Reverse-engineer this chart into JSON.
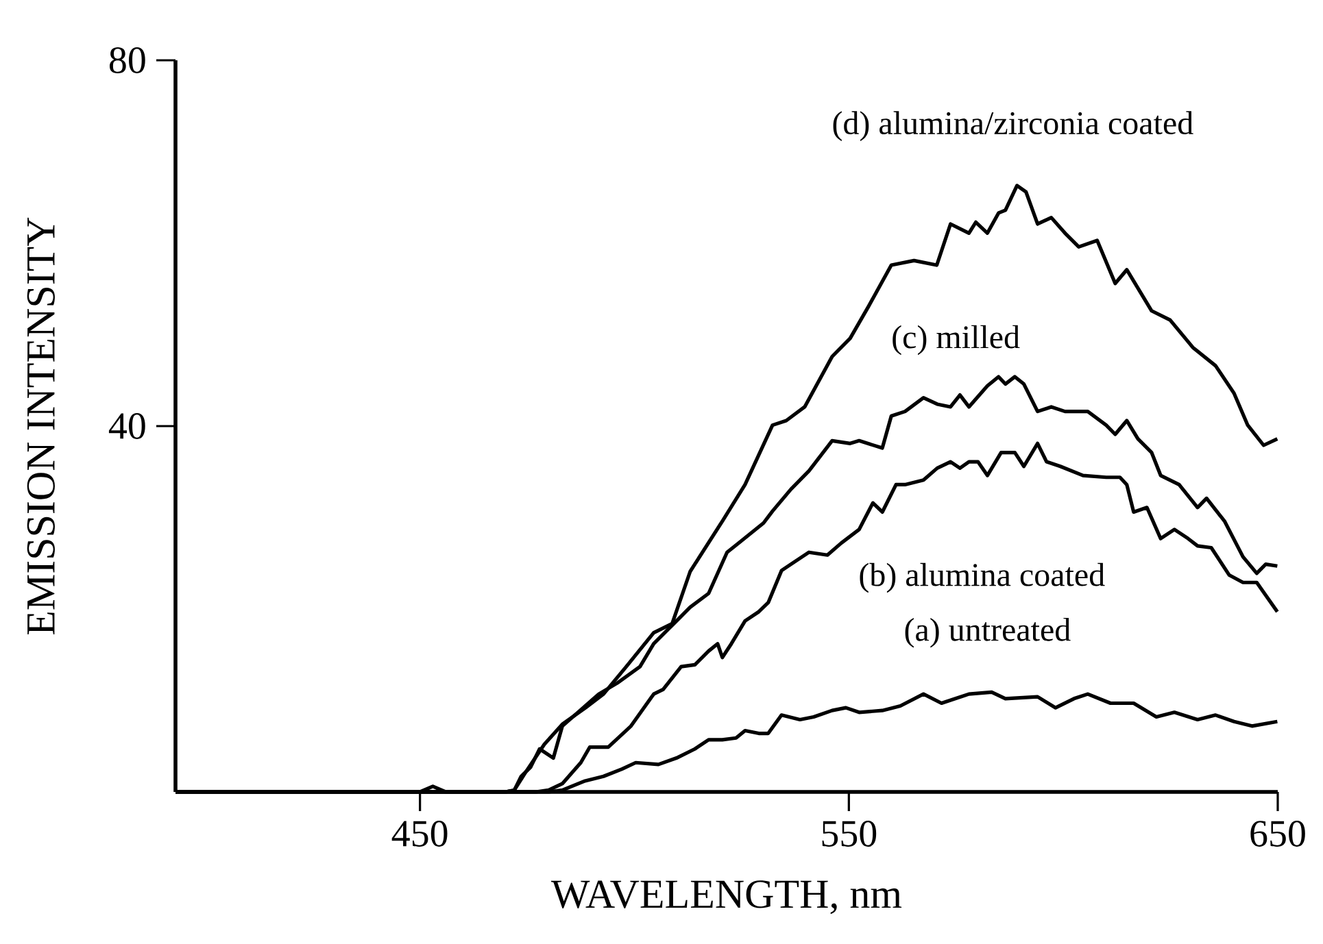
{
  "chart_data": {
    "type": "line",
    "xlabel": "WAVELENGTH, nm",
    "ylabel": "EMISSION INTENSITY",
    "xlim": [
      393,
      650
    ],
    "ylim": [
      0,
      80
    ],
    "xticks": [
      450,
      550,
      650
    ],
    "yticks": [
      40,
      80
    ],
    "series": [
      {
        "name": "(a) untreated",
        "color": "#000000",
        "x": [
          393,
          480,
          483.2,
          488.5,
          492.8,
          497.1,
          500.3,
          505.6,
          509.8,
          514.1,
          517.3,
          520.5,
          523.7,
          525.8,
          529.0,
          531.2,
          534.3,
          538.6,
          541.8,
          546.1,
          549.3,
          552.4,
          557.8,
          562.0,
          567.4,
          571.6,
          578.0,
          583.3,
          586.5,
          594.0,
          598.2,
          602.5,
          605.7,
          611.0,
          616.4,
          621.7,
          625.9,
          631.3,
          635.5,
          639.8,
          644.0,
          649.9
        ],
        "values": [
          0,
          0,
          0.2,
          1.2,
          1.7,
          2.5,
          3.2,
          3.0,
          3.7,
          4.7,
          5.7,
          5.7,
          5.9,
          6.7,
          6.4,
          6.4,
          8.4,
          7.9,
          8.2,
          8.9,
          9.2,
          8.7,
          8.9,
          9.4,
          10.7,
          9.7,
          10.7,
          10.9,
          10.2,
          10.4,
          9.2,
          10.2,
          10.7,
          9.7,
          9.7,
          8.2,
          8.7,
          7.9,
          8.4,
          7.7,
          7.2,
          7.7
        ]
      },
      {
        "name": "(b) alumina coated",
        "color": "#000000",
        "x": [
          393,
          477,
          480.0,
          483.2,
          487.5,
          489.6,
          493.9,
          499.2,
          504.5,
          506.7,
          510.9,
          514.1,
          517.3,
          519.4,
          520.5,
          522.6,
          525.8,
          529.0,
          531.2,
          534.3,
          536.5,
          540.7,
          545.0,
          548.2,
          552.4,
          555.6,
          557.8,
          561.0,
          563.1,
          567.4,
          570.6,
          573.7,
          575.9,
          578.0,
          580.1,
          582.3,
          585.5,
          588.7,
          590.8,
          594.0,
          596.1,
          599.3,
          604.6,
          610.0,
          613.2,
          614.8,
          616.4,
          619.5,
          622.7,
          625.9,
          629.1,
          631.3,
          634.5,
          638.7,
          641.9,
          645.1,
          649.9
        ],
        "values": [
          0,
          0,
          0.2,
          0.9,
          3.2,
          4.9,
          4.9,
          7.2,
          10.7,
          11.2,
          13.7,
          13.9,
          15.4,
          16.2,
          14.7,
          16.2,
          18.7,
          19.7,
          20.7,
          24.2,
          24.9,
          26.2,
          25.9,
          27.2,
          28.7,
          31.6,
          30.6,
          33.6,
          33.6,
          34.1,
          35.4,
          36.1,
          35.4,
          36.1,
          36.1,
          34.6,
          37.1,
          37.1,
          35.6,
          38.1,
          36.1,
          35.6,
          34.6,
          34.4,
          34.4,
          33.6,
          30.6,
          31.1,
          27.7,
          28.7,
          27.7,
          26.9,
          26.7,
          23.7,
          22.9,
          22.9,
          19.7
        ]
      },
      {
        "name": "(c) milled",
        "color": "#000000",
        "x": [
          393,
          470,
          472.0,
          473.6,
          475.8,
          477.9,
          481.1,
          483.2,
          491.7,
          496.0,
          501.3,
          504.5,
          507.7,
          510.9,
          513.0,
          517.3,
          521.6,
          524.8,
          530.1,
          532.2,
          536.5,
          540.7,
          546.1,
          550.3,
          552.4,
          557.8,
          559.9,
          563.1,
          567.4,
          570.6,
          573.7,
          575.9,
          578.0,
          582.3,
          584.9,
          586.5,
          588.7,
          590.8,
          594.0,
          597.2,
          600.4,
          605.7,
          610.0,
          612.1,
          614.8,
          617.4,
          620.6,
          622.7,
          627.0,
          631.3,
          633.4,
          637.6,
          641.9,
          645.1,
          647.2,
          649.9
        ],
        "values": [
          0,
          0,
          0.2,
          1.7,
          2.7,
          4.7,
          3.7,
          7.2,
          10.7,
          11.9,
          13.7,
          16.2,
          17.7,
          19.2,
          20.2,
          21.7,
          26.2,
          27.4,
          29.4,
          30.7,
          33.1,
          35.1,
          38.4,
          38.1,
          38.4,
          37.6,
          41.1,
          41.6,
          43.1,
          42.4,
          42.1,
          43.4,
          42.1,
          44.4,
          45.4,
          44.6,
          45.4,
          44.6,
          41.6,
          42.1,
          41.6,
          41.6,
          40.1,
          39.1,
          40.6,
          38.6,
          37.1,
          34.6,
          33.6,
          31.1,
          32.1,
          29.6,
          25.7,
          23.9,
          24.9,
          24.7
        ]
      },
      {
        "name": "(d) alumina/zirconia coated",
        "color": "#000000",
        "x": [
          393,
          450,
          453,
          456,
          470,
          472.0,
          474.7,
          479.0,
          483.2,
          488.6,
          492.8,
          498.1,
          504.5,
          508.8,
          513.0,
          520.5,
          525.8,
          532.2,
          535.4,
          539.7,
          546.1,
          550.3,
          554.6,
          559.9,
          565.2,
          570.5,
          573.7,
          578.0,
          579.6,
          582.3,
          584.9,
          586.5,
          589.2,
          591.3,
          594.0,
          597.2,
          600.4,
          603.6,
          607.9,
          612.1,
          614.8,
          620.6,
          624.9,
          630.2,
          635.5,
          639.8,
          643.0,
          646.7,
          649.9
        ],
        "values": [
          0,
          0,
          0.6,
          0,
          0,
          0.2,
          2.2,
          5.2,
          7.4,
          9.2,
          10.7,
          13.7,
          17.4,
          18.4,
          24.1,
          29.6,
          33.6,
          40.1,
          40.6,
          42.1,
          47.6,
          49.6,
          53.1,
          57.6,
          58.1,
          57.6,
          62.1,
          61.1,
          62.3,
          61.1,
          63.3,
          63.6,
          66.3,
          65.6,
          62.1,
          62.8,
          61.1,
          59.6,
          60.3,
          55.6,
          57.1,
          52.6,
          51.6,
          48.6,
          46.6,
          43.6,
          40.1,
          37.9,
          38.6
        ]
      }
    ]
  }
}
